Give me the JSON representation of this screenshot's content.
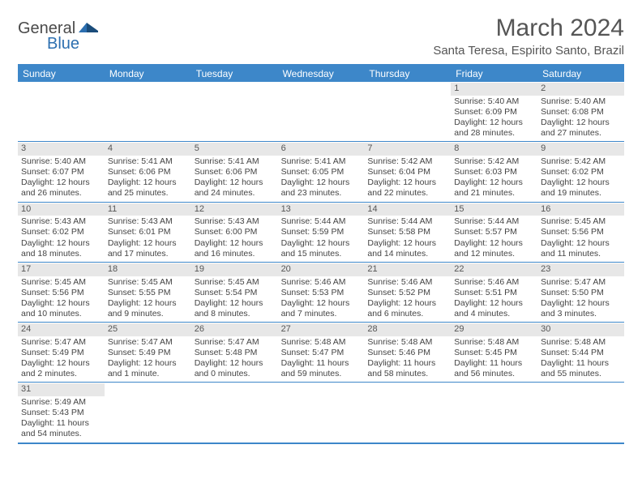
{
  "logo": {
    "general": "General",
    "blue": "Blue"
  },
  "title": "March 2024",
  "location": "Santa Teresa, Espirito Santo, Brazil",
  "colors": {
    "header_bg": "#3d87c9",
    "header_text": "#ffffff",
    "daynum_bg": "#e7e7e7",
    "text": "#444444",
    "title_text": "#555555"
  },
  "weekdays": [
    "Sunday",
    "Monday",
    "Tuesday",
    "Wednesday",
    "Thursday",
    "Friday",
    "Saturday"
  ],
  "weeks": [
    [
      null,
      null,
      null,
      null,
      null,
      {
        "d": "1",
        "sr": "5:40 AM",
        "ss": "6:09 PM",
        "dl": "12 hours and 28 minutes."
      },
      {
        "d": "2",
        "sr": "5:40 AM",
        "ss": "6:08 PM",
        "dl": "12 hours and 27 minutes."
      }
    ],
    [
      {
        "d": "3",
        "sr": "5:40 AM",
        "ss": "6:07 PM",
        "dl": "12 hours and 26 minutes."
      },
      {
        "d": "4",
        "sr": "5:41 AM",
        "ss": "6:06 PM",
        "dl": "12 hours and 25 minutes."
      },
      {
        "d": "5",
        "sr": "5:41 AM",
        "ss": "6:06 PM",
        "dl": "12 hours and 24 minutes."
      },
      {
        "d": "6",
        "sr": "5:41 AM",
        "ss": "6:05 PM",
        "dl": "12 hours and 23 minutes."
      },
      {
        "d": "7",
        "sr": "5:42 AM",
        "ss": "6:04 PM",
        "dl": "12 hours and 22 minutes."
      },
      {
        "d": "8",
        "sr": "5:42 AM",
        "ss": "6:03 PM",
        "dl": "12 hours and 21 minutes."
      },
      {
        "d": "9",
        "sr": "5:42 AM",
        "ss": "6:02 PM",
        "dl": "12 hours and 19 minutes."
      }
    ],
    [
      {
        "d": "10",
        "sr": "5:43 AM",
        "ss": "6:02 PM",
        "dl": "12 hours and 18 minutes."
      },
      {
        "d": "11",
        "sr": "5:43 AM",
        "ss": "6:01 PM",
        "dl": "12 hours and 17 minutes."
      },
      {
        "d": "12",
        "sr": "5:43 AM",
        "ss": "6:00 PM",
        "dl": "12 hours and 16 minutes."
      },
      {
        "d": "13",
        "sr": "5:44 AM",
        "ss": "5:59 PM",
        "dl": "12 hours and 15 minutes."
      },
      {
        "d": "14",
        "sr": "5:44 AM",
        "ss": "5:58 PM",
        "dl": "12 hours and 14 minutes."
      },
      {
        "d": "15",
        "sr": "5:44 AM",
        "ss": "5:57 PM",
        "dl": "12 hours and 12 minutes."
      },
      {
        "d": "16",
        "sr": "5:45 AM",
        "ss": "5:56 PM",
        "dl": "12 hours and 11 minutes."
      }
    ],
    [
      {
        "d": "17",
        "sr": "5:45 AM",
        "ss": "5:56 PM",
        "dl": "12 hours and 10 minutes."
      },
      {
        "d": "18",
        "sr": "5:45 AM",
        "ss": "5:55 PM",
        "dl": "12 hours and 9 minutes."
      },
      {
        "d": "19",
        "sr": "5:45 AM",
        "ss": "5:54 PM",
        "dl": "12 hours and 8 minutes."
      },
      {
        "d": "20",
        "sr": "5:46 AM",
        "ss": "5:53 PM",
        "dl": "12 hours and 7 minutes."
      },
      {
        "d": "21",
        "sr": "5:46 AM",
        "ss": "5:52 PM",
        "dl": "12 hours and 6 minutes."
      },
      {
        "d": "22",
        "sr": "5:46 AM",
        "ss": "5:51 PM",
        "dl": "12 hours and 4 minutes."
      },
      {
        "d": "23",
        "sr": "5:47 AM",
        "ss": "5:50 PM",
        "dl": "12 hours and 3 minutes."
      }
    ],
    [
      {
        "d": "24",
        "sr": "5:47 AM",
        "ss": "5:49 PM",
        "dl": "12 hours and 2 minutes."
      },
      {
        "d": "25",
        "sr": "5:47 AM",
        "ss": "5:49 PM",
        "dl": "12 hours and 1 minute."
      },
      {
        "d": "26",
        "sr": "5:47 AM",
        "ss": "5:48 PM",
        "dl": "12 hours and 0 minutes."
      },
      {
        "d": "27",
        "sr": "5:48 AM",
        "ss": "5:47 PM",
        "dl": "11 hours and 59 minutes."
      },
      {
        "d": "28",
        "sr": "5:48 AM",
        "ss": "5:46 PM",
        "dl": "11 hours and 58 minutes."
      },
      {
        "d": "29",
        "sr": "5:48 AM",
        "ss": "5:45 PM",
        "dl": "11 hours and 56 minutes."
      },
      {
        "d": "30",
        "sr": "5:48 AM",
        "ss": "5:44 PM",
        "dl": "11 hours and 55 minutes."
      }
    ],
    [
      {
        "d": "31",
        "sr": "5:49 AM",
        "ss": "5:43 PM",
        "dl": "11 hours and 54 minutes."
      },
      null,
      null,
      null,
      null,
      null,
      null
    ]
  ],
  "labels": {
    "sunrise": "Sunrise: ",
    "sunset": "Sunset: ",
    "daylight": "Daylight: "
  }
}
